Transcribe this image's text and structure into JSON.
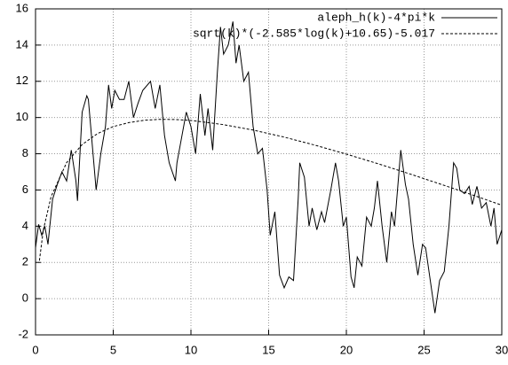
{
  "chart_data": {
    "type": "line",
    "xlim": [
      0,
      30
    ],
    "ylim": [
      -2,
      16
    ],
    "xticks": [
      0,
      5,
      10,
      15,
      20,
      25,
      30
    ],
    "yticks": [
      -2,
      0,
      2,
      4,
      6,
      8,
      10,
      12,
      14,
      16
    ],
    "grid": true,
    "legend": "top-right",
    "series": [
      {
        "name": "aleph_h(k)-4*pi*k",
        "color": "#000000",
        "style": "solid",
        "x": [
          0,
          0.2,
          0.4,
          0.6,
          0.8,
          1.1,
          1.4,
          1.7,
          2.0,
          2.3,
          2.6,
          2.7,
          3.0,
          3.3,
          3.4,
          3.7,
          3.9,
          4.2,
          4.5,
          4.7,
          4.9,
          5.1,
          5.4,
          5.7,
          6.0,
          6.3,
          6.6,
          6.9,
          7.4,
          7.7,
          8.0,
          8.3,
          8.6,
          9.0,
          9.1,
          9.4,
          9.7,
          10.0,
          10.3,
          10.6,
          10.9,
          11.1,
          11.4,
          11.7,
          11.9,
          12.1,
          12.4,
          12.7,
          12.9,
          13.1,
          13.4,
          13.7,
          14.0,
          14.3,
          14.6,
          14.9,
          15.1,
          15.4,
          15.7,
          16.0,
          16.3,
          16.6,
          16.9,
          17.0,
          17.3,
          17.6,
          17.8,
          18.1,
          18.4,
          18.6,
          19.0,
          19.3,
          19.5,
          19.8,
          20.0,
          20.3,
          20.5,
          20.7,
          21.0,
          21.3,
          21.6,
          21.8,
          22.0,
          22.3,
          22.6,
          22.9,
          23.1,
          23.5,
          23.8,
          24.0,
          24.3,
          24.6,
          24.9,
          25.1,
          25.4,
          25.7,
          26.0,
          26.3,
          26.6,
          26.9,
          27.1,
          27.3,
          27.6,
          27.9,
          28.1,
          28.4,
          28.7,
          29.0,
          29.3,
          29.5,
          29.7,
          30.0
        ],
        "values": [
          2.8,
          4.1,
          3.5,
          4.0,
          3.0,
          5.5,
          6.3,
          7.0,
          6.5,
          8.2,
          6.5,
          5.4,
          10.3,
          11.2,
          11.0,
          8.0,
          6.0,
          8.0,
          9.5,
          11.8,
          10.5,
          11.5,
          11.0,
          11.0,
          12.0,
          10.0,
          10.8,
          11.5,
          12.0,
          10.5,
          11.8,
          9.0,
          7.5,
          6.5,
          7.5,
          8.9,
          10.3,
          9.5,
          8.0,
          11.3,
          9.0,
          10.5,
          8.2,
          12.5,
          15.0,
          13.5,
          14.0,
          15.3,
          13.0,
          14.0,
          12.0,
          12.5,
          9.5,
          8.0,
          8.3,
          6.0,
          3.5,
          4.8,
          1.3,
          0.6,
          1.2,
          1.0,
          5.5,
          7.5,
          6.7,
          4.0,
          5.0,
          3.8,
          4.8,
          4.2,
          6.0,
          7.5,
          6.5,
          4.0,
          4.5,
          1.2,
          0.6,
          2.3,
          1.8,
          4.5,
          4.0,
          5.0,
          6.5,
          4.0,
          2.0,
          4.8,
          4.0,
          8.2,
          6.3,
          5.5,
          3.0,
          1.3,
          3.0,
          2.8,
          1.0,
          -0.8,
          1.0,
          1.5,
          4.0,
          7.5,
          7.2,
          6.0,
          5.8,
          6.2,
          5.2,
          6.2,
          5.0,
          5.3,
          4.0,
          5.0,
          3.0,
          3.8
        ]
      },
      {
        "name": "sqrt(k)*(-2.585*log(k)+10.65)-5.017",
        "color": "#000000",
        "style": "dashed",
        "x": [
          0.25,
          0.5,
          1,
          2,
          3,
          4,
          5,
          6,
          7,
          8,
          9,
          10,
          12,
          14,
          16,
          18,
          20,
          22,
          24,
          26,
          28,
          30
        ],
        "values": [
          2.1,
          3.78,
          5.63,
          7.51,
          8.51,
          9.12,
          9.5,
          9.72,
          9.85,
          9.9,
          9.89,
          9.84,
          9.62,
          9.31,
          8.92,
          8.47,
          7.98,
          7.46,
          6.91,
          6.34,
          5.76,
          5.16
        ]
      }
    ]
  }
}
